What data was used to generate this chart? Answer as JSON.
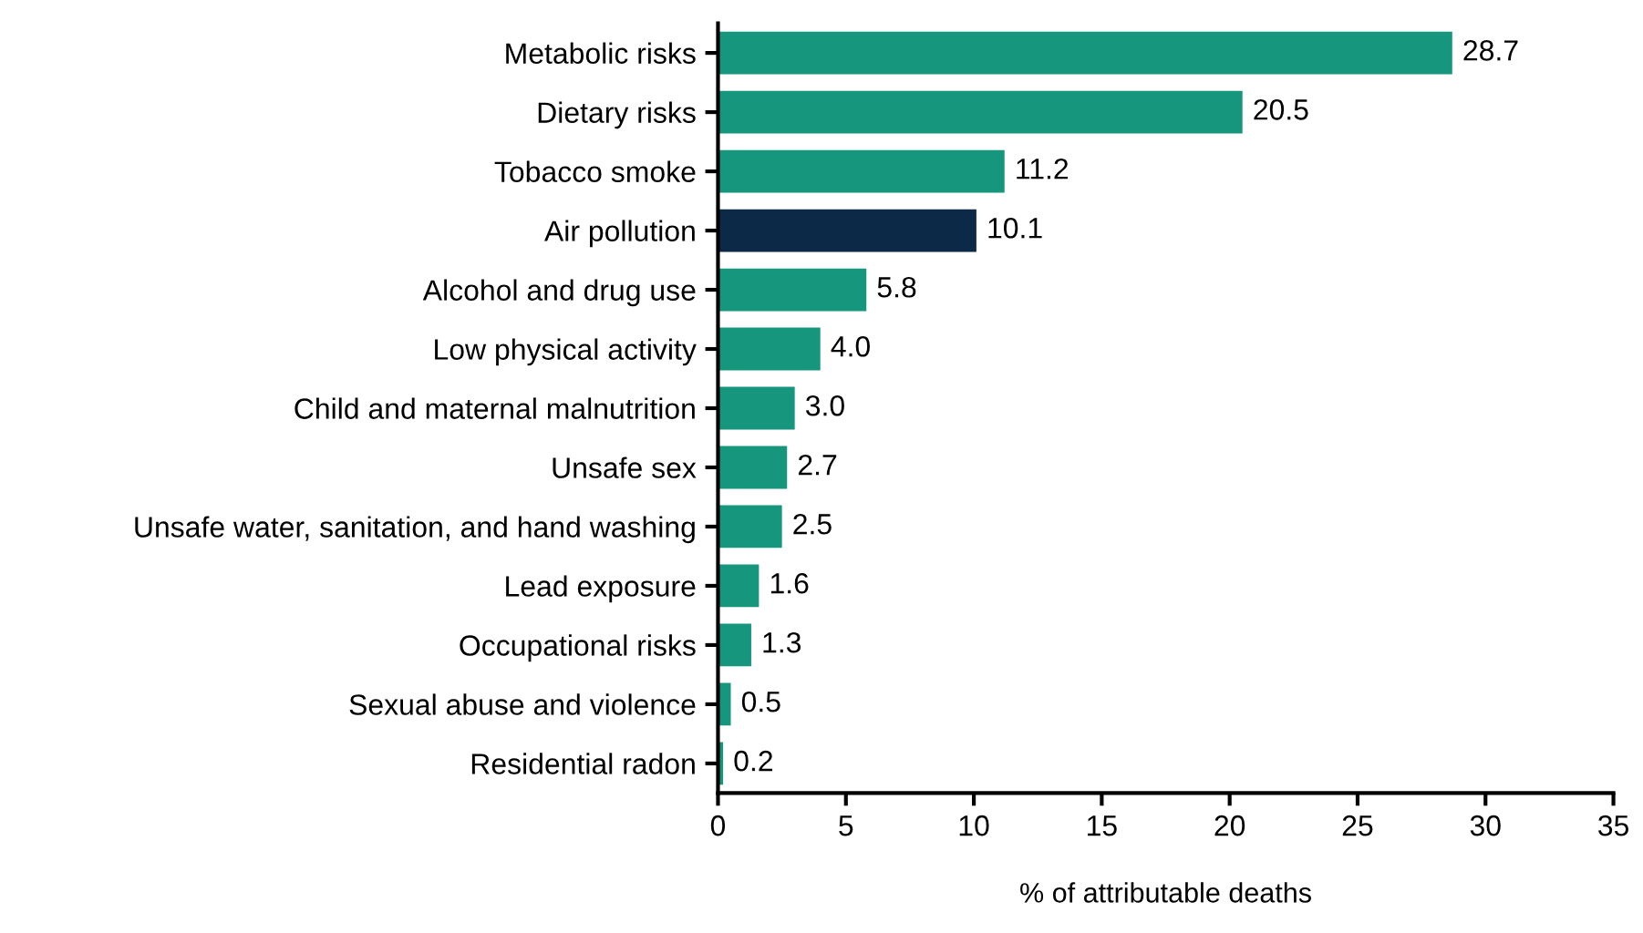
{
  "chart_data": {
    "type": "bar",
    "orientation": "horizontal",
    "xlabel": "% of attributable deaths",
    "categories": [
      "Metabolic risks",
      "Dietary risks",
      "Tobacco smoke",
      "Air pollution",
      "Alcohol and drug use",
      "Low physical activity",
      "Child and maternal malnutrition",
      "Unsafe sex",
      "Unsafe water, sanitation, and hand washing",
      "Lead exposure",
      "Occupational risks",
      "Sexual abuse and violence",
      "Residential radon"
    ],
    "values": [
      28.7,
      20.5,
      11.2,
      10.1,
      5.8,
      4.0,
      3.0,
      2.7,
      2.5,
      1.6,
      1.3,
      0.5,
      0.2
    ],
    "colors": [
      "#16967c",
      "#16967c",
      "#16967c",
      "#0c2a48",
      "#16967c",
      "#16967c",
      "#16967c",
      "#16967c",
      "#16967c",
      "#16967c",
      "#16967c",
      "#16967c",
      "#16967c"
    ],
    "xlim": [
      0,
      35
    ],
    "xticks": [
      0,
      5,
      10,
      15,
      20,
      25,
      30,
      35
    ],
    "value_labels": [
      "28.7",
      "20.5",
      "11.2",
      "10.1",
      "5.8",
      "4.0",
      "3.0",
      "2.7",
      "2.5",
      "1.6",
      "1.3",
      "0.5",
      "0.2"
    ],
    "grid": false,
    "legend": false
  }
}
